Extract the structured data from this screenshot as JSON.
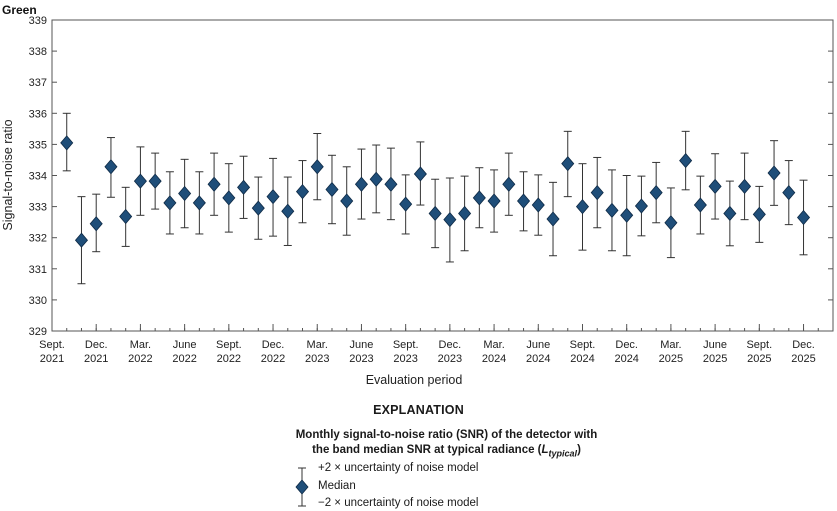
{
  "chart_data": {
    "type": "scatter",
    "title": "Green",
    "xlabel": "Evaluation period",
    "ylabel": "Signal-to-noise ratio",
    "ylim": [
      329,
      339
    ],
    "yticks": [
      329,
      330,
      331,
      332,
      333,
      334,
      335,
      336,
      337,
      338,
      339
    ],
    "xlim": [
      "2021-09",
      "2026-02"
    ],
    "xticks": [
      {
        "date": "2021-09",
        "line1": "Sept.",
        "line2": "2021"
      },
      {
        "date": "2021-12",
        "line1": "Dec.",
        "line2": "2021"
      },
      {
        "date": "2022-03",
        "line1": "Mar.",
        "line2": "2022"
      },
      {
        "date": "2022-06",
        "line1": "June",
        "line2": "2022"
      },
      {
        "date": "2022-09",
        "line1": "Sept.",
        "line2": "2022"
      },
      {
        "date": "2022-12",
        "line1": "Dec.",
        "line2": "2022"
      },
      {
        "date": "2023-03",
        "line1": "Mar.",
        "line2": "2023"
      },
      {
        "date": "2023-06",
        "line1": "June",
        "line2": "2023"
      },
      {
        "date": "2023-09",
        "line1": "Sept.",
        "line2": "2023"
      },
      {
        "date": "2023-12",
        "line1": "Dec.",
        "line2": "2023"
      },
      {
        "date": "2024-03",
        "line1": "Mar.",
        "line2": "2024"
      },
      {
        "date": "2024-06",
        "line1": "June",
        "line2": "2024"
      },
      {
        "date": "2024-09",
        "line1": "Sept.",
        "line2": "2024"
      },
      {
        "date": "2024-12",
        "line1": "Dec.",
        "line2": "2024"
      },
      {
        "date": "2025-03",
        "line1": "Mar.",
        "line2": "2025"
      },
      {
        "date": "2025-06",
        "line1": "June",
        "line2": "2025"
      },
      {
        "date": "2025-09",
        "line1": "Sept.",
        "line2": "2025"
      },
      {
        "date": "2025-12",
        "line1": "Dec.",
        "line2": "2025"
      }
    ],
    "marker_color": "#1f4e79",
    "series": [
      {
        "points": [
          {
            "x": "2021-10",
            "median": 335.05,
            "upper": 336.0,
            "lower": 334.15
          },
          {
            "x": "2021-11",
            "median": 331.92,
            "upper": 333.32,
            "lower": 330.52
          },
          {
            "x": "2021-12",
            "median": 332.45,
            "upper": 333.4,
            "lower": 331.55
          },
          {
            "x": "2022-01",
            "median": 334.28,
            "upper": 335.22,
            "lower": 333.3
          },
          {
            "x": "2022-02",
            "median": 332.68,
            "upper": 333.62,
            "lower": 331.72
          },
          {
            "x": "2022-03",
            "median": 333.82,
            "upper": 334.92,
            "lower": 332.72
          },
          {
            "x": "2022-04",
            "median": 333.82,
            "upper": 334.72,
            "lower": 332.92
          },
          {
            "x": "2022-05",
            "median": 333.12,
            "upper": 334.12,
            "lower": 332.12
          },
          {
            "x": "2022-06",
            "median": 333.42,
            "upper": 334.52,
            "lower": 332.32
          },
          {
            "x": "2022-07",
            "median": 333.12,
            "upper": 334.12,
            "lower": 332.12
          },
          {
            "x": "2022-08",
            "median": 333.72,
            "upper": 334.72,
            "lower": 332.72
          },
          {
            "x": "2022-09",
            "median": 333.28,
            "upper": 334.38,
            "lower": 332.18
          },
          {
            "x": "2022-10",
            "median": 333.62,
            "upper": 334.62,
            "lower": 332.62
          },
          {
            "x": "2022-11",
            "median": 332.95,
            "upper": 333.95,
            "lower": 331.95
          },
          {
            "x": "2022-12",
            "median": 333.32,
            "upper": 334.55,
            "lower": 332.05
          },
          {
            "x": "2023-01",
            "median": 332.85,
            "upper": 333.95,
            "lower": 331.75
          },
          {
            "x": "2023-02",
            "median": 333.48,
            "upper": 334.48,
            "lower": 332.48
          },
          {
            "x": "2023-03",
            "median": 334.28,
            "upper": 335.35,
            "lower": 333.22
          },
          {
            "x": "2023-04",
            "median": 333.55,
            "upper": 334.65,
            "lower": 332.45
          },
          {
            "x": "2023-05",
            "median": 333.18,
            "upper": 334.28,
            "lower": 332.08
          },
          {
            "x": "2023-06",
            "median": 333.72,
            "upper": 334.85,
            "lower": 332.6
          },
          {
            "x": "2023-07",
            "median": 333.88,
            "upper": 334.98,
            "lower": 332.8
          },
          {
            "x": "2023-08",
            "median": 333.72,
            "upper": 334.88,
            "lower": 332.58
          },
          {
            "x": "2023-09",
            "median": 333.08,
            "upper": 334.02,
            "lower": 332.12
          },
          {
            "x": "2023-10",
            "median": 334.05,
            "upper": 335.08,
            "lower": 333.05
          },
          {
            "x": "2023-11",
            "median": 332.78,
            "upper": 333.88,
            "lower": 331.68
          },
          {
            "x": "2023-12",
            "median": 332.58,
            "upper": 333.92,
            "lower": 331.22
          },
          {
            "x": "2024-01",
            "median": 332.78,
            "upper": 333.98,
            "lower": 331.58
          },
          {
            "x": "2024-02",
            "median": 333.28,
            "upper": 334.25,
            "lower": 332.32
          },
          {
            "x": "2024-03",
            "median": 333.18,
            "upper": 334.18,
            "lower": 332.18
          },
          {
            "x": "2024-04",
            "median": 333.72,
            "upper": 334.72,
            "lower": 332.72
          },
          {
            "x": "2024-05",
            "median": 333.18,
            "upper": 334.12,
            "lower": 332.22
          },
          {
            "x": "2024-06",
            "median": 333.05,
            "upper": 334.02,
            "lower": 332.08
          },
          {
            "x": "2024-07",
            "median": 332.6,
            "upper": 333.78,
            "lower": 331.42
          },
          {
            "x": "2024-08",
            "median": 334.38,
            "upper": 335.42,
            "lower": 333.32
          },
          {
            "x": "2024-09",
            "median": 333.0,
            "upper": 334.38,
            "lower": 331.6
          },
          {
            "x": "2024-10",
            "median": 333.45,
            "upper": 334.58,
            "lower": 332.32
          },
          {
            "x": "2024-11",
            "median": 332.88,
            "upper": 334.18,
            "lower": 331.58
          },
          {
            "x": "2024-12",
            "median": 332.72,
            "upper": 334.0,
            "lower": 331.42
          },
          {
            "x": "2025-01",
            "median": 333.02,
            "upper": 333.98,
            "lower": 332.06
          },
          {
            "x": "2025-02",
            "median": 333.45,
            "upper": 334.42,
            "lower": 332.48
          },
          {
            "x": "2025-03",
            "median": 332.48,
            "upper": 333.6,
            "lower": 331.36
          },
          {
            "x": "2025-04",
            "median": 334.48,
            "upper": 335.42,
            "lower": 333.54
          },
          {
            "x": "2025-05",
            "median": 333.05,
            "upper": 333.98,
            "lower": 332.12
          },
          {
            "x": "2025-06",
            "median": 333.65,
            "upper": 334.7,
            "lower": 332.6
          },
          {
            "x": "2025-07",
            "median": 332.78,
            "upper": 333.82,
            "lower": 331.74
          },
          {
            "x": "2025-08",
            "median": 333.65,
            "upper": 334.72,
            "lower": 332.58
          },
          {
            "x": "2025-09",
            "median": 332.75,
            "upper": 333.65,
            "lower": 331.85
          },
          {
            "x": "2025-10",
            "median": 334.08,
            "upper": 335.12,
            "lower": 333.04
          },
          {
            "x": "2025-11",
            "median": 333.45,
            "upper": 334.48,
            "lower": 332.42
          },
          {
            "x": "2025-12",
            "median": 332.65,
            "upper": 333.85,
            "lower": 331.45
          }
        ]
      }
    ],
    "grid": false,
    "legend_placement": "bottom-center"
  },
  "explanation": {
    "heading": "EXPLANATION",
    "caption_line1": "Monthly signal-to-noise ratio (SNR) of the detector with",
    "caption_line2_prefix": "the band median SNR at typical radiance (",
    "caption_line2_symbol": "L",
    "caption_line2_subscript": "typical",
    "caption_line2_suffix": ")",
    "legend_upper": "+2 × uncertainty of noise model",
    "legend_median": "Median",
    "legend_lower": "−2 × uncertainty of noise model"
  }
}
